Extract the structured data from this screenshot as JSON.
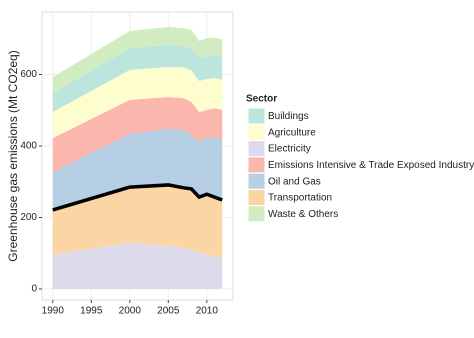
{
  "chart_data": {
    "type": "stacked_area",
    "y_label": "Greenhouse gas emissions (Mt CO2eq)",
    "legend_title": "Sector",
    "x": [
      1990,
      2000,
      2005,
      2007,
      2008,
      2009,
      2010,
      2011,
      2012
    ],
    "series": [
      {
        "name": "Electricity",
        "color": "#dcdaeb",
        "values": [
          95,
          130,
          120,
          115,
          110,
          100,
          98,
          92,
          87
        ]
      },
      {
        "name": "Transportation",
        "color": "#fcd5a4",
        "outline": "#000000",
        "values": [
          126,
          155,
          171,
          168,
          170,
          157,
          167,
          165,
          162
        ]
      },
      {
        "name": "Oil and Gas",
        "color": "#b6cfe4",
        "values": [
          106,
          149,
          157,
          162,
          150,
          156,
          157,
          168,
          168
        ]
      },
      {
        "name": "Emissions Intensive & Trade Exposed Industry",
        "color": "#fbb7ae",
        "values": [
          95,
          95,
          89,
          89,
          93,
          82,
          79,
          81,
          84
        ]
      },
      {
        "name": "Agriculture",
        "color": "#fefdcd",
        "values": [
          73,
          84,
          84,
          86,
          89,
          87,
          86,
          84,
          84
        ]
      },
      {
        "name": "Buildings",
        "color": "#bce5de",
        "values": [
          53,
          61,
          62,
          60,
          63,
          64,
          65,
          64,
          64
        ]
      },
      {
        "name": "Waste & Others",
        "color": "#d2ecc1",
        "values": [
          45,
          48,
          50,
          50,
          50,
          48,
          50,
          49,
          50
        ]
      }
    ],
    "legend_order": [
      5,
      4,
      0,
      3,
      2,
      1,
      6
    ],
    "xlim": [
      1988.6,
      2013.4
    ],
    "ylim": [
      -31,
      775
    ],
    "xticks": [
      1990,
      1995,
      2000,
      2005,
      2010
    ],
    "yticks": [
      0,
      200,
      400,
      600
    ],
    "grid": true
  }
}
